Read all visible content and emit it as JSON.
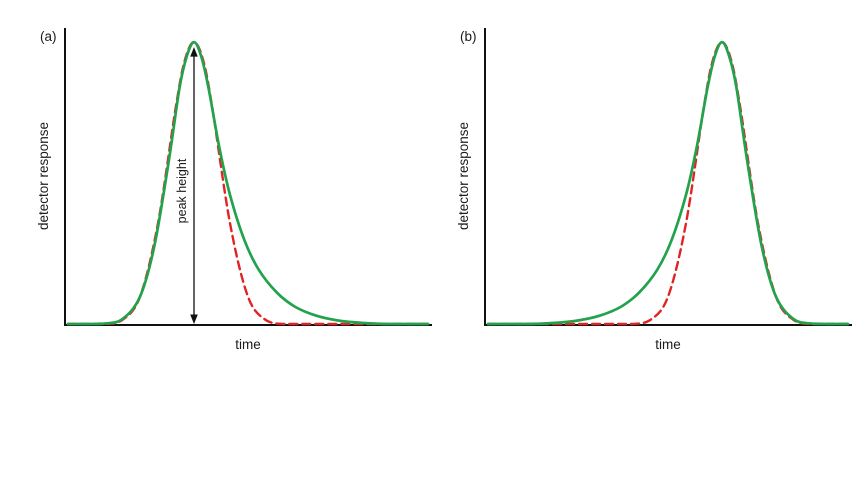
{
  "figure": {
    "background": "#ffffff"
  },
  "chart_data": [
    {
      "type": "line",
      "panel_label": "(a)",
      "xlabel": "time",
      "ylabel": "detector response",
      "x_range": [
        0,
        10
      ],
      "y_range": [
        0,
        1.05
      ],
      "axis_ticks": "none",
      "legend": "none",
      "grid": "off",
      "series": [
        {
          "name": "ideal-symmetric-peak",
          "color": "#e02424",
          "style": "dashed",
          "points": [
            [
              0,
              0
            ],
            [
              1,
              0.002
            ],
            [
              1.5,
              0.017
            ],
            [
              2,
              0.1
            ],
            [
              2.5,
              0.36
            ],
            [
              3,
              0.775
            ],
            [
              3.25,
              0.938
            ],
            [
              3.5,
              1.0
            ],
            [
              3.75,
              0.938
            ],
            [
              4,
              0.775
            ],
            [
              4.5,
              0.36
            ],
            [
              5,
              0.1
            ],
            [
              5.5,
              0.017
            ],
            [
              6,
              0.002
            ],
            [
              6.5,
              0
            ],
            [
              10,
              0
            ]
          ]
        },
        {
          "name": "tailing-peak",
          "color": "#23a24d",
          "style": "solid",
          "points": [
            [
              0,
              0
            ],
            [
              0.5,
              0.001
            ],
            [
              1,
              0.005
            ],
            [
              1.5,
              0.02
            ],
            [
              2,
              0.1
            ],
            [
              2.4,
              0.28
            ],
            [
              2.8,
              0.58
            ],
            [
              3.1,
              0.84
            ],
            [
              3.3,
              0.95
            ],
            [
              3.5,
              1.0
            ],
            [
              3.7,
              0.95
            ],
            [
              3.9,
              0.84
            ],
            [
              4.2,
              0.63
            ],
            [
              4.5,
              0.46
            ],
            [
              4.9,
              0.3
            ],
            [
              5.3,
              0.195
            ],
            [
              5.8,
              0.115
            ],
            [
              6.3,
              0.065
            ],
            [
              6.9,
              0.033
            ],
            [
              7.5,
              0.016
            ],
            [
              8.2,
              0.007
            ],
            [
              9,
              0.002
            ],
            [
              10,
              0
            ]
          ]
        }
      ],
      "annotation": {
        "kind": "double_headed_arrow",
        "label": "peak height",
        "x": 3.5,
        "y_from": 0,
        "y_to": 1.0
      }
    },
    {
      "type": "line",
      "panel_label": "(b)",
      "xlabel": "time",
      "ylabel": "detector response",
      "x_range": [
        0,
        10
      ],
      "y_range": [
        0,
        1.05
      ],
      "axis_ticks": "none",
      "legend": "none",
      "grid": "off",
      "series": [
        {
          "name": "ideal-symmetric-peak",
          "color": "#e02424",
          "style": "dashed",
          "points": [
            [
              0,
              0
            ],
            [
              3.5,
              0
            ],
            [
              4,
              0.002
            ],
            [
              4.5,
              0.017
            ],
            [
              5,
              0.1
            ],
            [
              5.5,
              0.36
            ],
            [
              6,
              0.775
            ],
            [
              6.25,
              0.938
            ],
            [
              6.5,
              1.0
            ],
            [
              6.75,
              0.938
            ],
            [
              7,
              0.775
            ],
            [
              7.5,
              0.36
            ],
            [
              8,
              0.1
            ],
            [
              8.5,
              0.017
            ],
            [
              9,
              0.002
            ],
            [
              10,
              0
            ]
          ]
        },
        {
          "name": "fronting-peak",
          "color": "#23a24d",
          "style": "solid",
          "points": [
            [
              0,
              0
            ],
            [
              1,
              0.002
            ],
            [
              1.8,
              0.007
            ],
            [
              2.5,
              0.016
            ],
            [
              3.1,
              0.033
            ],
            [
              3.7,
              0.065
            ],
            [
              4.2,
              0.115
            ],
            [
              4.7,
              0.195
            ],
            [
              5.1,
              0.3
            ],
            [
              5.5,
              0.46
            ],
            [
              5.8,
              0.63
            ],
            [
              6.1,
              0.84
            ],
            [
              6.3,
              0.95
            ],
            [
              6.5,
              1.0
            ],
            [
              6.7,
              0.95
            ],
            [
              6.9,
              0.84
            ],
            [
              7.2,
              0.58
            ],
            [
              7.6,
              0.28
            ],
            [
              8,
              0.1
            ],
            [
              8.5,
              0.02
            ],
            [
              9,
              0.005
            ],
            [
              9.5,
              0.001
            ],
            [
              10,
              0
            ]
          ]
        }
      ]
    }
  ]
}
